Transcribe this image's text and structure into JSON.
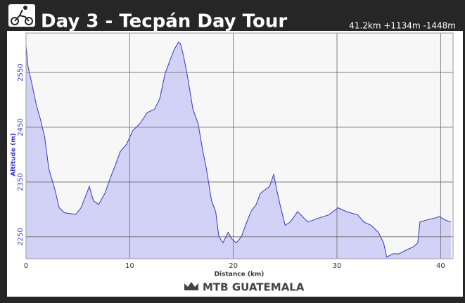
{
  "header": {
    "title": "Day 3 - Tecpán Day Tour",
    "stats": "41.2km +1134m -1448m"
  },
  "chart_data": {
    "type": "area",
    "x_label": "Distance (km)",
    "y_label": "Altitude (m)",
    "x": [
      0,
      0.2,
      0.5,
      1.0,
      1.4,
      1.8,
      2.2,
      2.8,
      3.2,
      3.7,
      4.8,
      5.3,
      5.7,
      6.1,
      6.5,
      7.0,
      7.6,
      8.2,
      8.6,
      9.1,
      9.7,
      10.3,
      11.0,
      11.7,
      12.4,
      12.9,
      13.4,
      13.9,
      14.3,
      14.7,
      14.9,
      15.2,
      15.6,
      16.1,
      16.6,
      17.0,
      17.4,
      17.9,
      18.3,
      18.6,
      19.0,
      19.5,
      19.9,
      20.3,
      20.8,
      21.3,
      21.7,
      22.2,
      22.6,
      23.0,
      23.5,
      23.9,
      24.2,
      24.5,
      25.0,
      25.5,
      26.2,
      27.2,
      28.2,
      29.2,
      30.1,
      30.9,
      32.0,
      32.6,
      33.3,
      34.0,
      34.5,
      34.8,
      35.4,
      36.0,
      36.7,
      37.4,
      37.8,
      38.0,
      38.7,
      39.4,
      39.9,
      40.4,
      41.0
    ],
    "series": [
      {
        "name": "Altitude",
        "color": "#3535cc",
        "fill": "#d2d2f7",
        "values": [
          2599,
          2560,
          2535,
          2490,
          2464,
          2432,
          2374,
          2335,
          2303,
          2294,
          2291,
          2303,
          2322,
          2342,
          2316,
          2309,
          2329,
          2361,
          2380,
          2406,
          2419,
          2444,
          2457,
          2477,
          2483,
          2502,
          2547,
          2573,
          2592,
          2605,
          2603,
          2580,
          2541,
          2483,
          2457,
          2412,
          2374,
          2316,
          2296,
          2251,
          2239,
          2258,
          2245,
          2239,
          2251,
          2277,
          2296,
          2309,
          2329,
          2335,
          2342,
          2364,
          2335,
          2309,
          2271,
          2277,
          2296,
          2277,
          2284,
          2290,
          2303,
          2296,
          2290,
          2277,
          2271,
          2258,
          2239,
          2213,
          2219,
          2219,
          2226,
          2232,
          2239,
          2277,
          2281,
          2284,
          2287,
          2281,
          2277
        ]
      }
    ],
    "xlim": [
      0,
      41.2
    ],
    "ylim": [
      2210,
      2622
    ],
    "xticks": [
      0,
      10,
      20,
      30,
      40
    ],
    "yticks": [
      2250,
      2350,
      2450,
      2550
    ],
    "grid": true
  },
  "logo": "MTB GUATEMALA"
}
